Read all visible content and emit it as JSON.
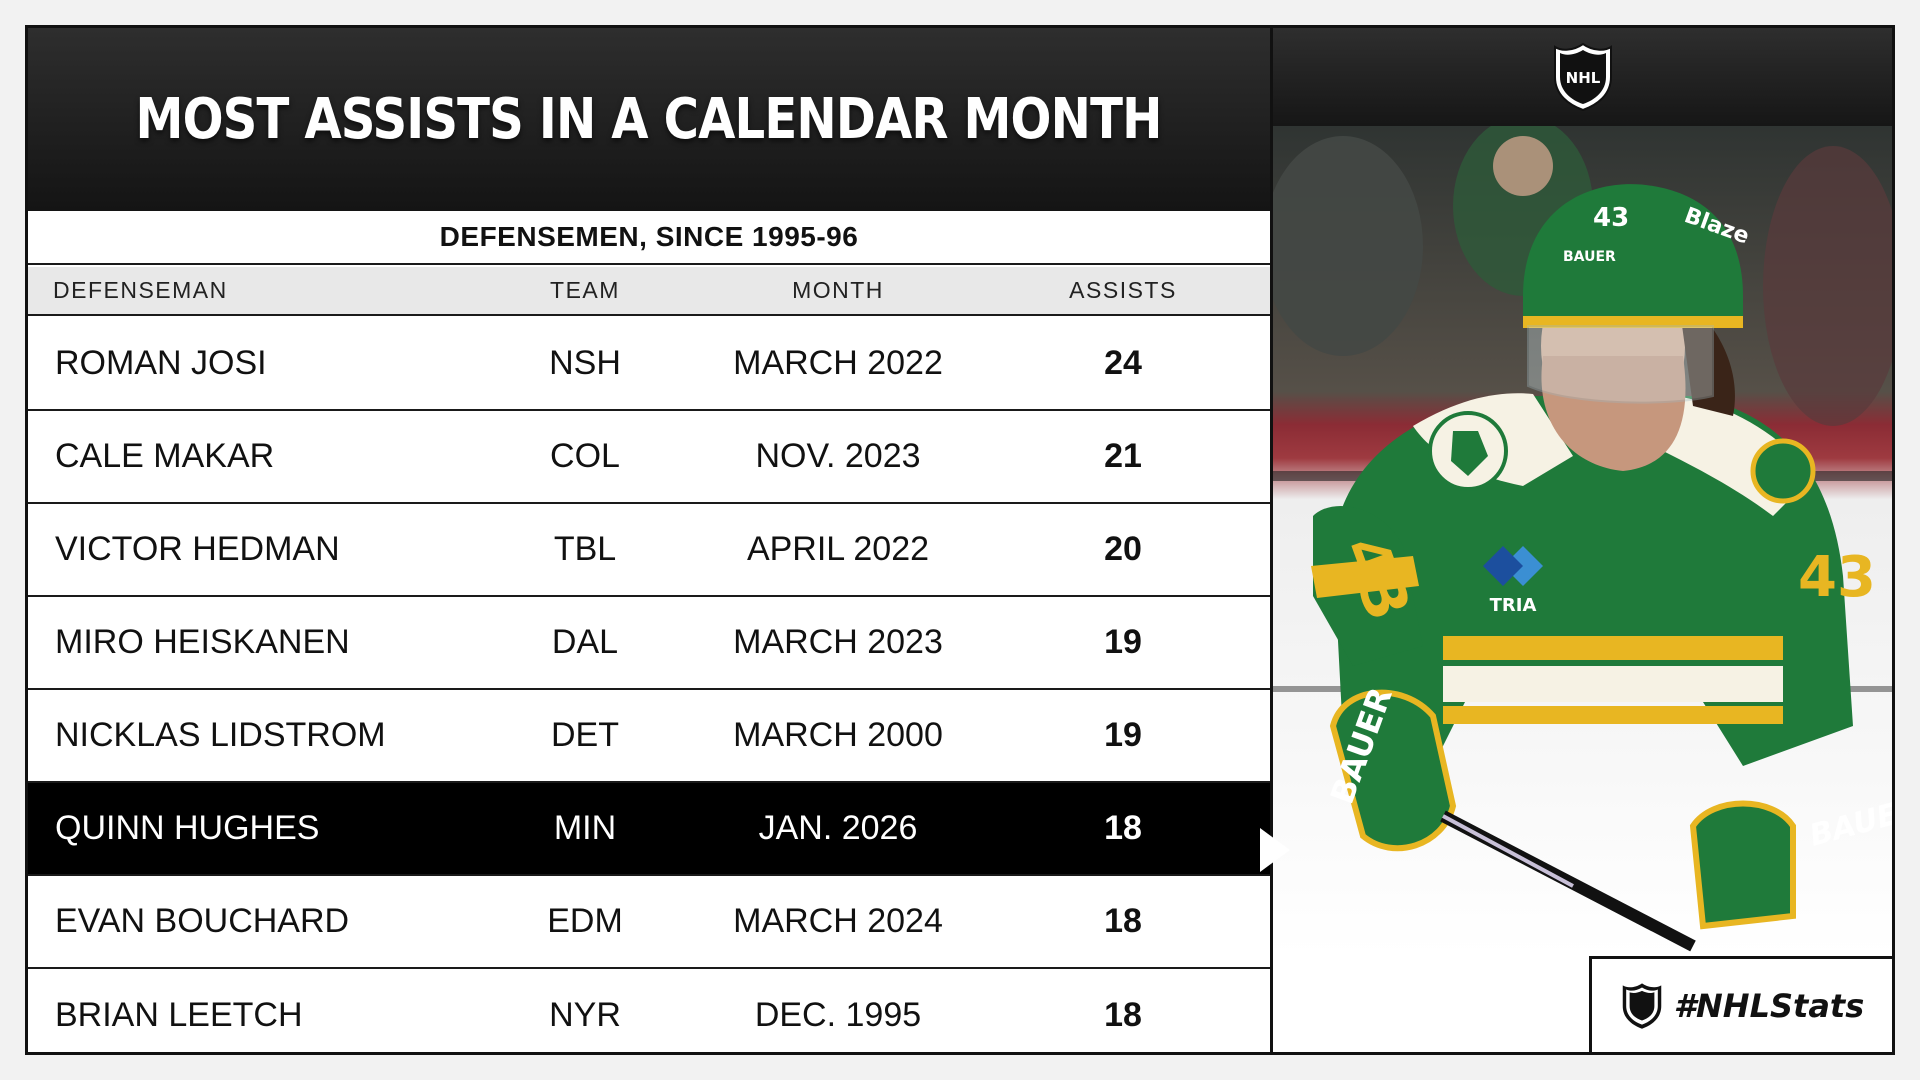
{
  "title": "MOST ASSISTS IN A CALENDAR MONTH",
  "subtitle": "DEFENSEMEN, SINCE 1995-96",
  "columns": {
    "name": "DEFENSEMAN",
    "team": "TEAM",
    "month": "MONTH",
    "assists": "ASSISTS"
  },
  "rows": [
    {
      "name": "ROMAN JOSI",
      "team": "NSH",
      "month": "MARCH 2022",
      "assists": "24"
    },
    {
      "name": "CALE MAKAR",
      "team": "COL",
      "month": "NOV. 2023",
      "assists": "21"
    },
    {
      "name": "VICTOR HEDMAN",
      "team": "TBL",
      "month": "APRIL 2022",
      "assists": "20"
    },
    {
      "name": "MIRO HEISKANEN",
      "team": "DAL",
      "month": "MARCH 2023",
      "assists": "19"
    },
    {
      "name": "NICKLAS LIDSTROM",
      "team": "DET",
      "month": "MARCH 2000",
      "assists": "19"
    },
    {
      "name": "QUINN HUGHES",
      "team": "MIN",
      "month": "JAN. 2026",
      "assists": "18"
    },
    {
      "name": "EVAN BOUCHARD",
      "team": "EDM",
      "month": "MARCH 2024",
      "assists": "18"
    },
    {
      "name": "BRIAN LEETCH",
      "team": "NYR",
      "month": "DEC. 1995",
      "assists": "18"
    }
  ],
  "highlight_row": 5,
  "hashtag": "#NHLStats",
  "logo": {
    "text": "NHL",
    "icon": "nhl-shield-icon"
  },
  "photo": {
    "jersey_number": "43",
    "helmet_number": "43",
    "sponsor": "TRIA",
    "helmet_brand": "BAUER",
    "helmet_sponsor": "Blaze",
    "glove_brand": "BAUER"
  },
  "colors": {
    "title_bg": "#1f1f1f",
    "highlight_bg": "#000000",
    "jersey_green": "#1f7a3a",
    "jersey_gold": "#e8b622",
    "jersey_red": "#a22a36"
  }
}
